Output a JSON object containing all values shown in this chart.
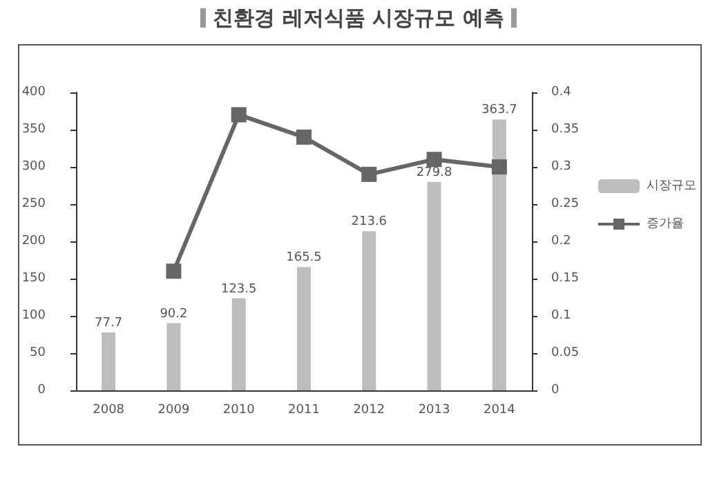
{
  "chart_data": {
    "type": "bar",
    "title": "친환경 레저식품 시장규모 예측",
    "categories": [
      "2008",
      "2009",
      "2010",
      "2011",
      "2012",
      "2013",
      "2014"
    ],
    "series": [
      {
        "name": "시장규모",
        "color": "#bdbdbd",
        "values": [
          77.7,
          90.2,
          123.5,
          165.5,
          213.6,
          279.8,
          363.7
        ],
        "value_labels": [
          "77.7",
          "90.2",
          "123.5",
          "165.5",
          "213.6",
          "279.8",
          "363.7"
        ]
      },
      {
        "name": "증가율",
        "type": "line",
        "axis": "y2",
        "color": "#666666",
        "values": [
          null,
          0.16,
          0.37,
          0.34,
          0.29,
          0.31,
          0.3
        ]
      }
    ],
    "ylim": [
      0,
      400
    ],
    "yticks": [
      0,
      50,
      100,
      150,
      200,
      250,
      300,
      350,
      400
    ],
    "y2lim": [
      0,
      0.4
    ],
    "y2ticks": [
      0,
      0.05,
      0.1,
      0.15,
      0.2,
      0.25,
      0.3,
      0.35,
      0.4
    ],
    "legend": "right",
    "grid": false,
    "marker": "square",
    "line_style": "solid"
  }
}
